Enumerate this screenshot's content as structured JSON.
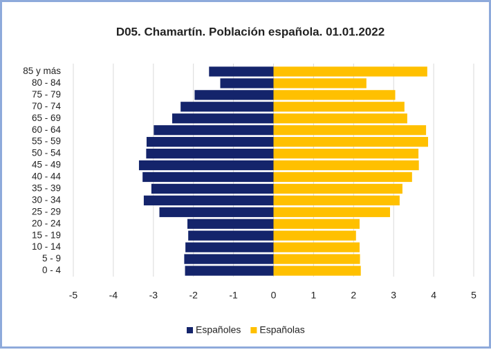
{
  "chart_data": {
    "type": "pyramid",
    "title": "D05. Chamartín. Población española. 01.01.2022",
    "categories": [
      "0 - 4",
      "5 - 9",
      "10 - 14",
      "15 - 19",
      "20 - 24",
      "25 - 29",
      "30 - 34",
      "35 - 39",
      "40 - 44",
      "45 - 49",
      "50 - 54",
      "55 - 59",
      "60 - 64",
      "65 - 69",
      "70 - 74",
      "75 - 79",
      "80 - 84",
      "85 y más"
    ],
    "series": [
      {
        "name": "Españoles",
        "color": "#14246b",
        "values": [
          -2.21,
          -2.23,
          -2.2,
          -2.13,
          -2.15,
          -2.85,
          -3.24,
          -3.05,
          -3.27,
          -3.36,
          -3.18,
          -3.17,
          -2.99,
          -2.53,
          -2.32,
          -1.97,
          -1.33,
          -1.61
        ]
      },
      {
        "name": "Españolas",
        "color": "#ffc000",
        "values": [
          2.18,
          2.16,
          2.15,
          2.06,
          2.15,
          2.91,
          3.15,
          3.22,
          3.46,
          3.63,
          3.62,
          3.86,
          3.81,
          3.34,
          3.27,
          3.04,
          2.32,
          3.84
        ]
      }
    ],
    "xlim": [
      -5,
      5
    ],
    "xticks": [
      -5,
      -4,
      -3,
      -2,
      -1,
      0,
      1,
      2,
      3,
      4,
      5
    ],
    "grid": true,
    "legend": "bottom"
  }
}
